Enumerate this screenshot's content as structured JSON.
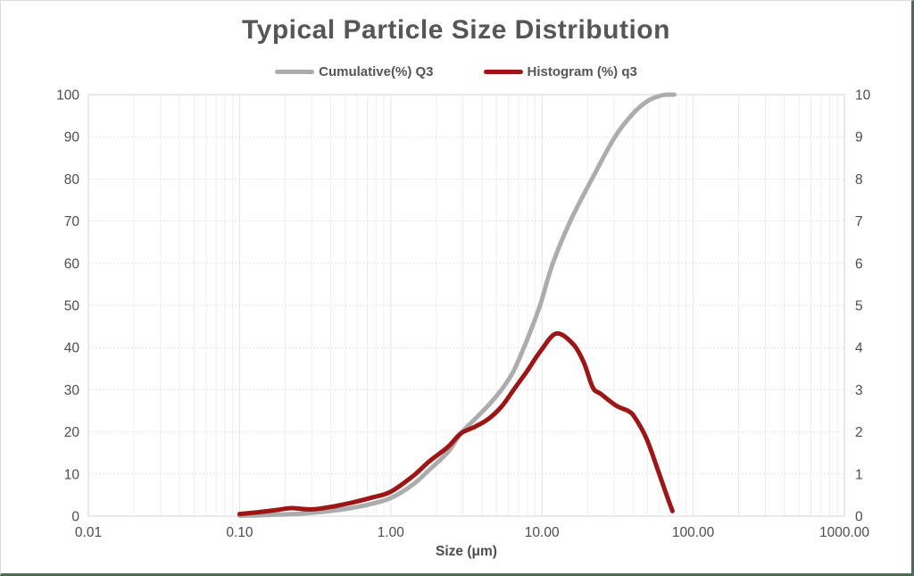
{
  "window": {
    "title": "Typical Particle Size Distribution"
  },
  "colors": {
    "title_text": "#565656",
    "axis_text": "#4d4d4d",
    "grid_major_h": "#e2e2e2",
    "grid_major_v": "#e4e4e4",
    "grid_minor_v": "#efefef",
    "plot_border": "#d4d4d4",
    "panel_border_gray": "#dcdcdc",
    "panel_border_green": "#4f6b51",
    "series_gray": "#acacac",
    "series_red": "#9c1616"
  },
  "chart_data": {
    "type": "line",
    "title": "Typical Particle Size Distribution",
    "xlabel": "Size (μm)",
    "x_scale": "log",
    "x_range": [
      0.01,
      1000
    ],
    "x_ticks": [
      "0.01",
      "0.10",
      "1.00",
      "10.00",
      "100.00",
      "1000.00"
    ],
    "y_left": {
      "label": "",
      "min": 0,
      "max": 100,
      "ticks": [
        0,
        10,
        20,
        30,
        40,
        50,
        60,
        70,
        80,
        90,
        100
      ]
    },
    "y_right": {
      "label": "",
      "min": 0,
      "max": 10,
      "ticks": [
        0,
        1,
        2,
        3,
        4,
        5,
        6,
        7,
        8,
        9,
        10
      ]
    },
    "grid": {
      "horizontal_major": true,
      "vertical_major": true,
      "vertical_log_minor": true
    },
    "legend_position": "top",
    "series": [
      {
        "name": "Cumulative(%) Q3",
        "axis": "left",
        "color": "#acacac",
        "points": [
          [
            0.1,
            0.1
          ],
          [
            0.13,
            0.2
          ],
          [
            0.18,
            0.35
          ],
          [
            0.25,
            0.6
          ],
          [
            0.35,
            1.0
          ],
          [
            0.5,
            1.7
          ],
          [
            0.7,
            2.7
          ],
          [
            1.0,
            4.3
          ],
          [
            1.4,
            7.5
          ],
          [
            1.8,
            11.0
          ],
          [
            2.4,
            15.3
          ],
          [
            2.9,
            19.6
          ],
          [
            3.6,
            23.0
          ],
          [
            4.4,
            26.2
          ],
          [
            5.4,
            30.0
          ],
          [
            6.5,
            34.5
          ],
          [
            8.0,
            42.0
          ],
          [
            9.7,
            50.0
          ],
          [
            11.8,
            60.0
          ],
          [
            15.4,
            70.0
          ],
          [
            21.4,
            80.0
          ],
          [
            30.4,
            90.0
          ],
          [
            40,
            95.5
          ],
          [
            50,
            98.5
          ],
          [
            60,
            99.7
          ],
          [
            67,
            100
          ],
          [
            75,
            100
          ]
        ]
      },
      {
        "name": "Histogram (%) q3",
        "axis": "right",
        "color": "#9c1616",
        "points": [
          [
            0.1,
            0.05
          ],
          [
            0.13,
            0.09
          ],
          [
            0.18,
            0.15
          ],
          [
            0.22,
            0.19
          ],
          [
            0.3,
            0.16
          ],
          [
            0.4,
            0.22
          ],
          [
            0.55,
            0.32
          ],
          [
            0.75,
            0.44
          ],
          [
            1.0,
            0.58
          ],
          [
            1.4,
            0.95
          ],
          [
            1.8,
            1.3
          ],
          [
            2.4,
            1.65
          ],
          [
            2.9,
            1.96
          ],
          [
            3.6,
            2.12
          ],
          [
            4.4,
            2.3
          ],
          [
            5.4,
            2.6
          ],
          [
            6.5,
            3.0
          ],
          [
            8.0,
            3.45
          ],
          [
            9.8,
            3.92
          ],
          [
            12.4,
            4.33
          ],
          [
            15.9,
            4.1
          ],
          [
            18.9,
            3.65
          ],
          [
            21.7,
            3.05
          ],
          [
            24.5,
            2.9
          ],
          [
            31,
            2.62
          ],
          [
            37,
            2.5
          ],
          [
            41,
            2.35
          ],
          [
            49,
            1.85
          ],
          [
            59,
            1.05
          ],
          [
            68,
            0.42
          ],
          [
            73,
            0.12
          ]
        ]
      }
    ]
  }
}
